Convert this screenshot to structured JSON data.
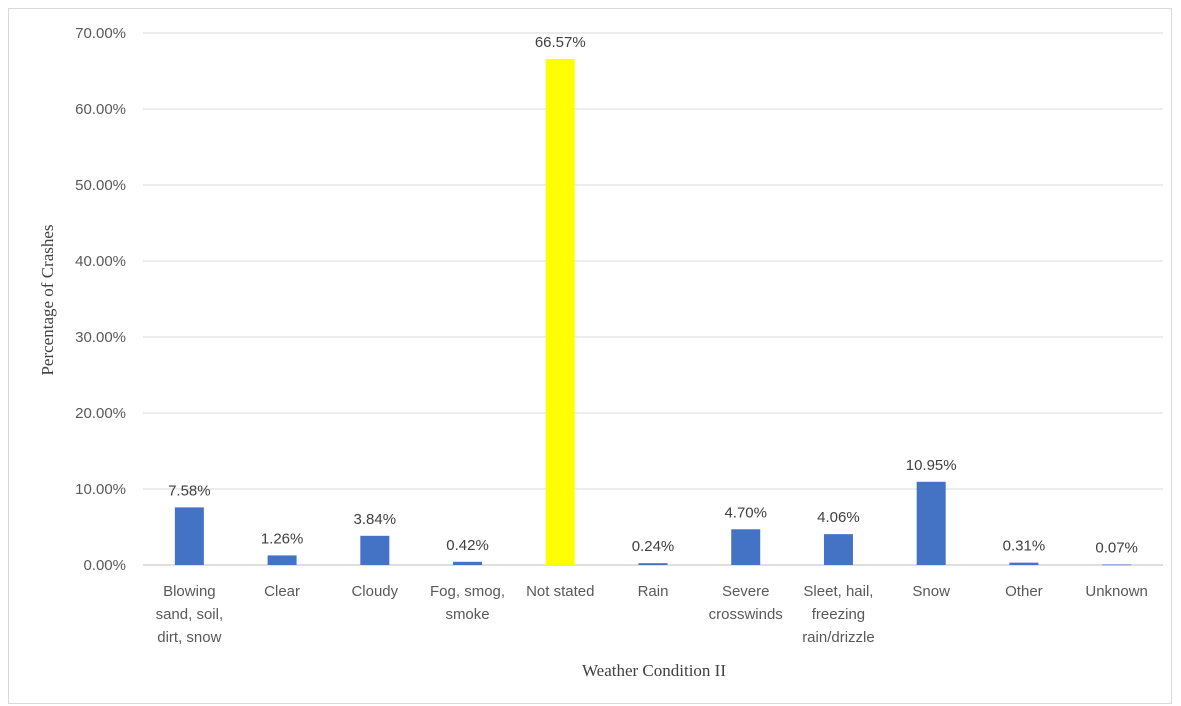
{
  "chart_data": {
    "type": "bar",
    "title": "",
    "xlabel": "Weather Condition II",
    "ylabel": "Percentage of Crashes",
    "ylim": [
      0,
      70
    ],
    "yticks": [
      "0.00%",
      "10.00%",
      "20.00%",
      "30.00%",
      "40.00%",
      "50.00%",
      "60.00%",
      "70.00%"
    ],
    "grid": true,
    "categories": [
      [
        "Blowing",
        "sand, soil,",
        "dirt, snow"
      ],
      [
        "Clear"
      ],
      [
        "Cloudy"
      ],
      [
        "Fog, smog,",
        "smoke"
      ],
      [
        "Not stated"
      ],
      [
        "Rain"
      ],
      [
        "Severe",
        "crosswinds"
      ],
      [
        "Sleet, hail,",
        "freezing",
        "rain/drizzle"
      ],
      [
        "Snow"
      ],
      [
        "Other"
      ],
      [
        "Unknown"
      ]
    ],
    "values": [
      7.58,
      1.26,
      3.84,
      0.42,
      66.57,
      0.24,
      4.7,
      4.06,
      10.95,
      0.31,
      0.07
    ],
    "value_labels": [
      "7.58%",
      "1.26%",
      "3.84%",
      "0.42%",
      "66.57%",
      "0.24%",
      "4.70%",
      "4.06%",
      "10.95%",
      "0.31%",
      "0.07%"
    ],
    "colors": {
      "default_bar": "#4472c4",
      "highlight_bar": "#ffff00",
      "highlight_index": 4
    }
  }
}
